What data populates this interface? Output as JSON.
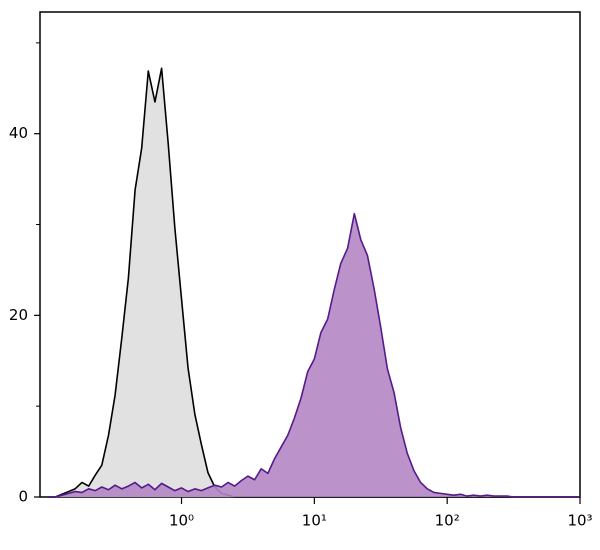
{
  "chart_data": {
    "type": "histogram-overlay",
    "x": [
      0.1,
      0.112,
      0.126,
      0.141,
      0.158,
      0.178,
      0.2,
      0.224,
      0.251,
      0.282,
      0.316,
      0.355,
      0.398,
      0.447,
      0.501,
      0.562,
      0.631,
      0.708,
      0.794,
      0.891,
      1,
      1.12,
      1.26,
      1.41,
      1.58,
      1.78,
      2,
      2.24,
      2.51,
      2.82,
      3.16,
      3.55,
      3.98,
      4.47,
      5.01,
      5.62,
      6.31,
      7.08,
      7.94,
      8.91,
      10,
      11.2,
      12.6,
      14.1,
      15.8,
      17.8,
      20,
      22.4,
      25.1,
      28.2,
      31.6,
      35.5,
      39.8,
      44.7,
      50.1,
      56.2,
      63.1,
      70.8,
      79.4,
      89.1,
      100,
      112,
      126,
      141,
      158,
      178,
      200,
      224,
      251,
      282,
      316,
      355,
      398,
      447,
      501,
      562,
      631,
      708,
      794,
      891,
      1000
    ],
    "series": [
      {
        "color": "#000000",
        "fill": "#dedede",
        "values": [
          0,
          0,
          0.3,
          0.6,
          0.9,
          1.6,
          1.2,
          2.4,
          3.5,
          6.8,
          11.2,
          17.5,
          24.1,
          33.8,
          38.4,
          46.9,
          43.5,
          47.2,
          38.9,
          29.6,
          21.8,
          14.2,
          9.1,
          5.8,
          2.7,
          1.1,
          0.4,
          0.2,
          0,
          0,
          0,
          0,
          0,
          0,
          0,
          0,
          0,
          0,
          0,
          0,
          0,
          0,
          0,
          0,
          0,
          0,
          0,
          0,
          0,
          0,
          0,
          0,
          0,
          0,
          0,
          0,
          0,
          0,
          0,
          0,
          0,
          0,
          0,
          0,
          0,
          0,
          0,
          0,
          0,
          0,
          0,
          0,
          0,
          0,
          0,
          0,
          0,
          0,
          0,
          0,
          0
        ]
      },
      {
        "color": "#551a8b",
        "fill": "#b586c4",
        "values": [
          0,
          0,
          0.2,
          0.4,
          0.6,
          0.5,
          0.9,
          0.7,
          1.1,
          0.8,
          1.3,
          0.9,
          1.2,
          1.6,
          1.0,
          1.4,
          0.8,
          1.5,
          1.1,
          0.7,
          1.0,
          0.6,
          0.9,
          0.7,
          1.0,
          1.3,
          1.1,
          1.6,
          1.2,
          1.8,
          2.3,
          1.9,
          3.1,
          2.6,
          4.2,
          5.5,
          6.8,
          8.7,
          10.9,
          13.8,
          15.2,
          18.1,
          19.6,
          22.8,
          25.7,
          27.4,
          31.2,
          28.3,
          26.6,
          22.9,
          18.7,
          14.1,
          11.5,
          7.6,
          4.8,
          2.9,
          1.6,
          0.9,
          0.5,
          0.4,
          0.3,
          0.2,
          0.3,
          0.1,
          0.2,
          0.1,
          0.2,
          0.1,
          0.1,
          0.1,
          0,
          0,
          0,
          0,
          0,
          0,
          0,
          0,
          0,
          0,
          0
        ]
      }
    ],
    "xscale": "log",
    "xlim": [
      0.086,
      1000
    ],
    "xticks": [
      {
        "value": 1,
        "label": "10⁰"
      },
      {
        "value": 10,
        "label": "10¹"
      },
      {
        "value": 100,
        "label": "10²"
      },
      {
        "value": 1000,
        "label": "10³"
      }
    ],
    "ylim": [
      0,
      53.4
    ],
    "yticks": [
      0,
      20,
      40
    ],
    "yminorticks": [
      10,
      30,
      50
    ]
  }
}
